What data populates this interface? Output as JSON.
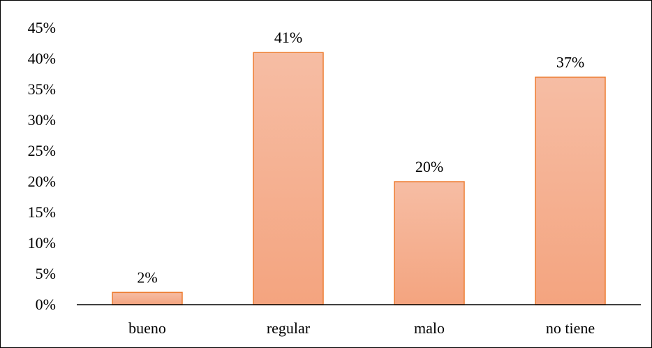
{
  "chart_data": {
    "type": "bar",
    "categories": [
      "bueno",
      "regular",
      "malo",
      "no tiene"
    ],
    "values": [
      2,
      41,
      20,
      37
    ],
    "data_labels": [
      "2%",
      "41%",
      "20%",
      "37%"
    ],
    "title": "",
    "xlabel": "",
    "ylabel": "",
    "ylim": [
      0,
      45
    ],
    "yticks": [
      "0%",
      "5%",
      "10%",
      "15%",
      "20%",
      "25%",
      "30%",
      "35%",
      "40%",
      "45%"
    ],
    "grid": false,
    "legend": "none",
    "colors": {
      "bar_fill_top": "#f6bda4",
      "bar_fill_bottom": "#f4a47f",
      "bar_stroke": "#ed7d31",
      "axis": "#000000",
      "border": "#000000"
    }
  }
}
